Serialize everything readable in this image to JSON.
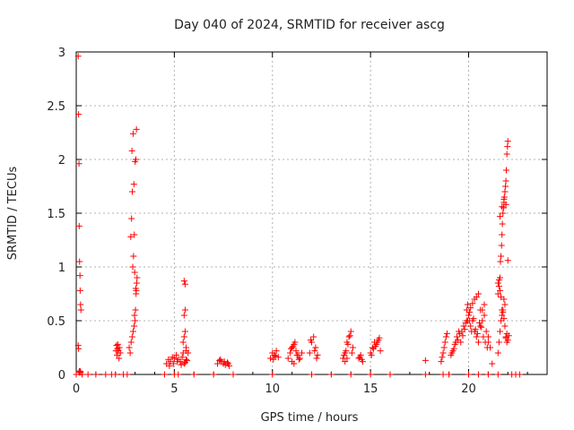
{
  "chart_data": {
    "type": "scatter",
    "title": "Day 040 of 2024, SRMTID for receiver ascg",
    "xlabel": "GPS time / hours",
    "ylabel": "SRMTID / TECUs",
    "xlim": [
      0,
      24
    ],
    "ylim": [
      0,
      3
    ],
    "xticks": [
      0,
      5,
      10,
      15,
      20
    ],
    "yticks": [
      0,
      0.5,
      1,
      1.5,
      2,
      2.5,
      3
    ],
    "xtick_labels": [
      "0",
      "5",
      "10",
      "15",
      "20"
    ],
    "ytick_labels": [
      "0",
      "0.5",
      "1",
      "1.5",
      "2",
      "2.5",
      "3"
    ],
    "grid": true,
    "marker": "+",
    "color": "#ff0000",
    "series": [
      {
        "name": "ascg",
        "x": [
          0.1,
          0.12,
          0.14,
          0.15,
          0.17,
          0.19,
          0.2,
          0.22,
          0.24,
          0.1,
          0.12,
          0.14,
          0.16,
          0.18,
          0.2,
          0.22,
          2.05,
          2.1,
          2.15,
          2.2,
          2.25,
          2.08,
          2.18,
          2.02,
          2.12,
          2.7,
          2.75,
          2.8,
          2.85,
          2.9,
          2.95,
          2.97,
          3.0,
          3.02,
          3.05,
          3.08,
          3.1,
          2.88,
          2.92,
          2.98,
          3.03,
          3.06,
          2.78,
          2.82,
          2.86,
          2.94,
          3.0,
          3.04,
          2.9,
          3.07,
          2.84,
          2.96,
          4.6,
          4.7,
          4.8,
          4.9,
          5.0,
          5.1,
          5.2,
          5.3,
          5.4,
          5.5,
          5.6,
          5.7,
          4.75,
          4.95,
          5.15,
          5.35,
          5.55,
          5.65,
          5.45,
          5.5,
          5.55,
          5.6,
          5.5,
          5.55,
          5.45,
          5.6,
          5.5,
          5.55,
          7.2,
          7.3,
          7.4,
          7.5,
          7.6,
          7.7,
          7.8,
          7.35,
          7.55,
          7.75,
          9.9,
          10.0,
          10.1,
          10.2,
          10.3,
          10.05,
          10.15,
          10.8,
          10.9,
          11.0,
          11.1,
          11.2,
          11.3,
          11.4,
          11.5,
          10.95,
          11.05,
          11.15,
          11.25,
          11.35,
          11.0,
          11.1,
          11.9,
          12.0,
          12.1,
          12.2,
          12.3,
          11.95,
          12.15,
          12.25,
          13.6,
          13.7,
          13.8,
          13.9,
          14.0,
          14.1,
          13.65,
          13.75,
          13.85,
          13.95,
          14.05,
          13.7,
          13.8,
          14.4,
          14.5,
          14.6,
          14.45,
          14.55,
          15.0,
          15.1,
          15.2,
          15.3,
          15.4,
          15.5,
          15.05,
          15.15,
          15.25,
          15.35,
          15.45,
          17.8,
          18.6,
          18.7,
          18.8,
          18.9,
          18.65,
          18.75,
          18.85,
          19.1,
          19.2,
          19.3,
          19.4,
          19.5,
          19.6,
          19.7,
          19.8,
          19.9,
          20.0,
          20.1,
          20.2,
          20.3,
          20.4,
          20.5,
          20.6,
          20.7,
          20.8,
          20.9,
          21.0,
          19.15,
          19.35,
          19.55,
          19.75,
          19.95,
          20.15,
          20.35,
          20.55,
          20.75,
          20.95,
          19.25,
          19.45,
          19.65,
          19.85,
          20.05,
          20.25,
          20.45,
          20.65,
          20.85,
          19.9,
          19.95,
          20.0,
          20.05,
          20.1,
          20.2,
          20.3,
          20.4,
          20.5,
          20.6,
          20.7,
          20.8,
          21.0,
          21.1,
          21.2,
          21.5,
          21.55,
          21.6,
          21.65,
          21.7,
          21.75,
          21.8,
          21.85,
          21.9,
          21.95,
          22.0,
          22.05,
          21.5,
          21.55,
          21.6,
          21.62,
          21.65,
          21.68,
          21.7,
          21.72,
          21.75,
          21.78,
          21.8,
          21.82,
          21.85,
          21.88,
          21.9,
          21.92,
          21.95,
          21.98,
          22.0,
          21.5,
          21.55,
          21.6,
          21.65,
          21.7,
          21.75,
          21.8,
          21.85,
          21.9,
          21.95,
          21.6,
          21.7,
          21.8,
          21.9,
          22.0,
          0.0,
          0.3,
          0.6,
          1.0,
          1.5,
          1.8,
          2.0,
          2.4,
          2.6,
          4.5,
          5.0,
          5.2,
          6.0,
          7.0,
          8.0,
          10.0,
          12.0,
          13.0,
          14.0,
          15.0,
          16.0,
          17.8,
          18.7,
          19.0,
          20.0,
          20.5,
          21.0,
          21.5,
          22.2,
          22.4,
          22.6
        ],
        "y": [
          2.96,
          2.42,
          1.96,
          1.38,
          1.05,
          0.92,
          0.78,
          0.65,
          0.6,
          0.27,
          0.24,
          0.02,
          0.03,
          0.02,
          0.03,
          0.02,
          0.27,
          0.24,
          0.22,
          0.25,
          0.2,
          0.18,
          0.15,
          0.22,
          0.28,
          0.25,
          0.2,
          0.3,
          0.35,
          0.4,
          0.45,
          0.55,
          0.5,
          0.6,
          0.75,
          0.85,
          0.9,
          1.0,
          1.1,
          0.95,
          0.8,
          0.78,
          1.28,
          1.45,
          1.7,
          1.77,
          1.98,
          2.0,
          2.24,
          2.28,
          2.08,
          1.3,
          0.1,
          0.14,
          0.12,
          0.16,
          0.15,
          0.18,
          0.14,
          0.12,
          0.16,
          0.1,
          0.14,
          0.2,
          0.08,
          0.1,
          0.12,
          0.09,
          0.11,
          0.13,
          0.3,
          0.35,
          0.4,
          0.25,
          0.55,
          0.6,
          0.2,
          0.22,
          0.87,
          0.84,
          0.1,
          0.13,
          0.12,
          0.1,
          0.09,
          0.11,
          0.08,
          0.14,
          0.12,
          0.1,
          0.15,
          0.2,
          0.18,
          0.22,
          0.16,
          0.14,
          0.17,
          0.15,
          0.2,
          0.25,
          0.28,
          0.22,
          0.18,
          0.15,
          0.2,
          0.24,
          0.26,
          0.3,
          0.18,
          0.14,
          0.12,
          0.1,
          0.2,
          0.3,
          0.35,
          0.25,
          0.18,
          0.32,
          0.22,
          0.15,
          0.15,
          0.2,
          0.3,
          0.35,
          0.4,
          0.25,
          0.18,
          0.22,
          0.28,
          0.36,
          0.2,
          0.12,
          0.15,
          0.15,
          0.18,
          0.12,
          0.16,
          0.14,
          0.2,
          0.25,
          0.3,
          0.28,
          0.32,
          0.22,
          0.18,
          0.24,
          0.26,
          0.3,
          0.34,
          0.13,
          0.12,
          0.2,
          0.3,
          0.38,
          0.16,
          0.25,
          0.35,
          0.18,
          0.22,
          0.28,
          0.35,
          0.4,
          0.3,
          0.36,
          0.42,
          0.5,
          0.55,
          0.45,
          0.5,
          0.4,
          0.35,
          0.3,
          0.45,
          0.6,
          0.55,
          0.4,
          0.35,
          0.2,
          0.3,
          0.38,
          0.45,
          0.5,
          0.4,
          0.42,
          0.48,
          0.35,
          0.25,
          0.24,
          0.32,
          0.4,
          0.48,
          0.58,
          0.52,
          0.38,
          0.44,
          0.3,
          0.6,
          0.65,
          0.55,
          0.5,
          0.62,
          0.66,
          0.7,
          0.72,
          0.75,
          0.6,
          0.5,
          0.65,
          0.3,
          0.25,
          0.1,
          0.2,
          0.3,
          0.4,
          0.5,
          0.55,
          0.6,
          0.7,
          0.65,
          0.35,
          0.3,
          0.32,
          0.36,
          0.75,
          0.82,
          0.9,
          1.05,
          1.1,
          1.2,
          1.3,
          1.4,
          1.5,
          1.55,
          1.6,
          1.65,
          1.7,
          1.75,
          1.8,
          1.9,
          2.05,
          2.12,
          2.17,
          0.85,
          0.88,
          0.78,
          0.72,
          0.6,
          0.58,
          0.52,
          0.45,
          0.34,
          0.38,
          1.47,
          1.56,
          1.63,
          1.58,
          1.06,
          0.0,
          0.0,
          0.0,
          0.0,
          0.0,
          0.0,
          0.0,
          0.0,
          0.0,
          0.0,
          0.0,
          0.0,
          0.0,
          0.0,
          0.0,
          0.0,
          0.0,
          0.0,
          0.0,
          0.0,
          0.0,
          0.0,
          0.0,
          0.0,
          0.0,
          0.0,
          0.0,
          0.0,
          0.0,
          0.0,
          0.0
        ]
      }
    ]
  }
}
